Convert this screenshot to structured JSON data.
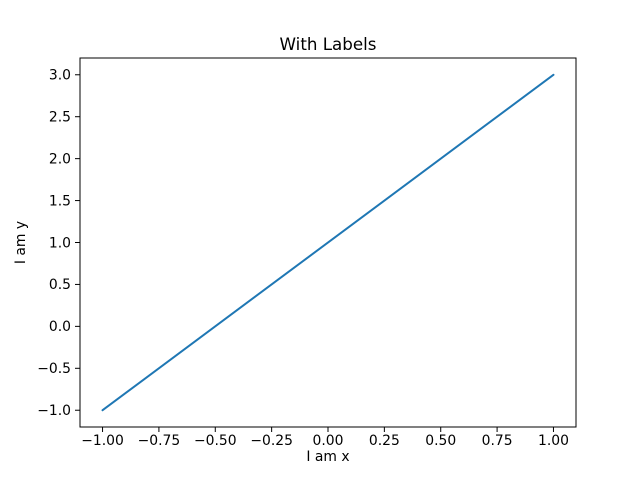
{
  "chart_data": {
    "type": "line",
    "title": "With Labels",
    "xlabel": "I am x",
    "ylabel": "I am y",
    "series": [
      {
        "x": [
          -1,
          1
        ],
        "y": [
          -1,
          3
        ],
        "color": "#1f77b4"
      }
    ],
    "xlim": [
      -1.1,
      1.1
    ],
    "ylim": [
      -1.2,
      3.2
    ],
    "xticks": [
      -1.0,
      -0.75,
      -0.5,
      -0.25,
      0.0,
      0.25,
      0.5,
      0.75,
      1.0
    ],
    "xtick_labels": [
      "−1.00",
      "−0.75",
      "−0.50",
      "−0.25",
      "0.00",
      "0.25",
      "0.50",
      "0.75",
      "1.00"
    ],
    "yticks": [
      -1.0,
      -0.5,
      0.0,
      0.5,
      1.0,
      1.5,
      2.0,
      2.5,
      3.0
    ],
    "ytick_labels": [
      "−1.0",
      "−0.5",
      "0.0",
      "0.5",
      "1.0",
      "1.5",
      "2.0",
      "2.5",
      "3.0"
    ],
    "grid": false,
    "legend": null
  },
  "colors": {
    "line": "#1f77b4",
    "axes": "#000000",
    "text": "#000000",
    "background": "#ffffff"
  }
}
